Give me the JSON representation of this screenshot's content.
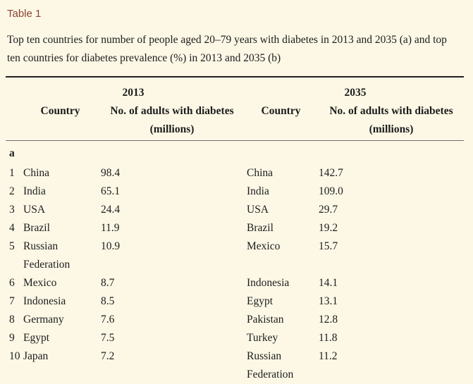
{
  "page": {
    "background_color": "#fdf8e6",
    "text_color": "#1c1c1c",
    "rule_color": "#1e1e1e",
    "rule_light_color": "#6e6e6e",
    "label_color": "#8c4334"
  },
  "table_label": "Table 1",
  "caption": "Top ten countries for number of people aged 20–79 years with diabetes in 2013 and 2035 (a) and top ten countries for diabetes prevalence (%) in 2013 and 2035 (b)",
  "table": {
    "section_label": "a",
    "groups": [
      {
        "year": "2013",
        "country_header": "Country",
        "value_header": "No. of adults with diabetes",
        "value_header_unit": "(millions)"
      },
      {
        "year": "2035",
        "country_header": "Country",
        "value_header": "No. of adults with diabetes",
        "value_header_unit": "(millions)"
      }
    ],
    "rows": [
      {
        "rank": "1",
        "country_2013": "China",
        "value_2013": "98.4",
        "country_2035": "China",
        "value_2035": "142.7"
      },
      {
        "rank": "2",
        "country_2013": "India",
        "value_2013": "65.1",
        "country_2035": "India",
        "value_2035": "109.0"
      },
      {
        "rank": "3",
        "country_2013": "USA",
        "value_2013": "24.4",
        "country_2035": "USA",
        "value_2035": "29.7"
      },
      {
        "rank": "4",
        "country_2013": "Brazil",
        "value_2013": "11.9",
        "country_2035": "Brazil",
        "value_2035": "19.2"
      },
      {
        "rank": "5",
        "country_2013": "Russian Federation",
        "value_2013": "10.9",
        "country_2035": "Mexico",
        "value_2035": "15.7"
      },
      {
        "rank": "6",
        "country_2013": "Mexico",
        "value_2013": "8.7",
        "country_2035": "Indonesia",
        "value_2035": "14.1"
      },
      {
        "rank": "7",
        "country_2013": "Indonesia",
        "value_2013": "8.5",
        "country_2035": "Egypt",
        "value_2035": "13.1"
      },
      {
        "rank": "8",
        "country_2013": "Germany",
        "value_2013": "7.6",
        "country_2035": "Pakistan",
        "value_2035": "12.8"
      },
      {
        "rank": "9",
        "country_2013": "Egypt",
        "value_2013": "7.5",
        "country_2035": "Turkey",
        "value_2035": "11.8"
      },
      {
        "rank": "10",
        "country_2013": "Japan",
        "value_2013": "7.2",
        "country_2035": "Russian Federation",
        "value_2035": "11.2"
      }
    ]
  }
}
